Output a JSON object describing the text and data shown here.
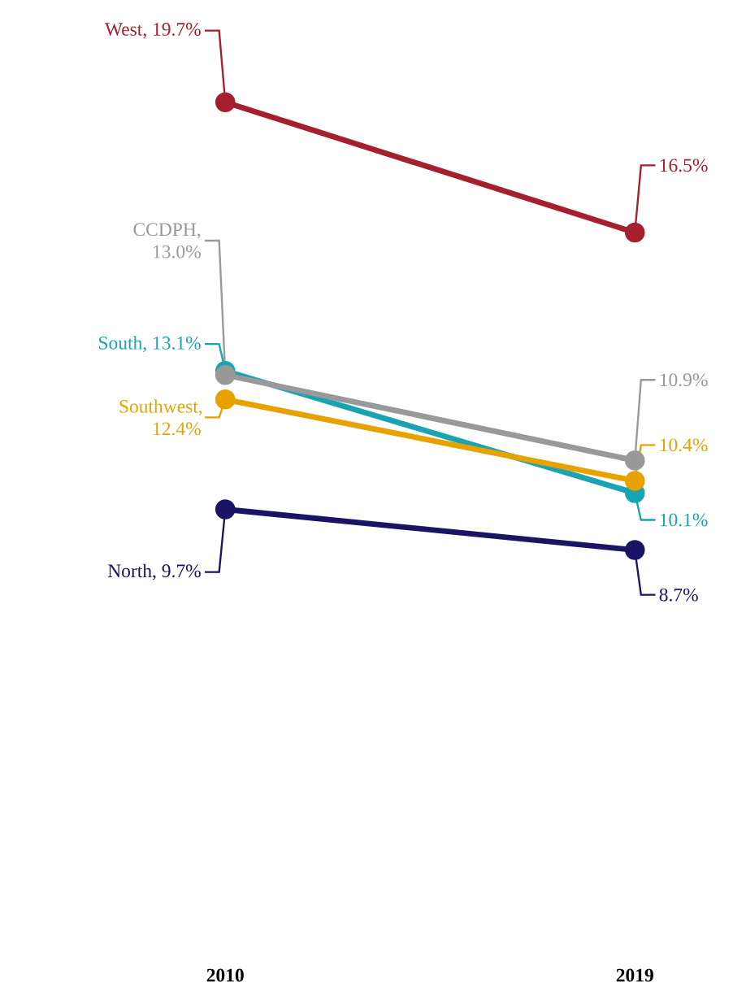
{
  "chart_data": {
    "type": "line",
    "categories": [
      "2010",
      "2019"
    ],
    "marker": "circle",
    "line_style": "solid",
    "series": [
      {
        "color": "#a51f2e",
        "values": [
          19.7,
          16.5
        ],
        "value_labels": [
          "West, 19.7%",
          "16.5%"
        ]
      },
      {
        "color": "#1aa3b0",
        "values": [
          13.1,
          10.1
        ],
        "value_labels": [
          "South, 13.1%",
          "10.1%"
        ]
      },
      {
        "color": "#e8a200",
        "values": [
          12.4,
          10.4
        ],
        "value_labels": [
          "Southwest, 12.4%",
          "10.4%"
        ]
      },
      {
        "color": "#999999",
        "values": [
          13.0,
          10.9
        ],
        "value_labels": [
          "CCDPH, 13.0%",
          "10.9%"
        ]
      },
      {
        "color": "#1b1464",
        "values": [
          9.7,
          8.7
        ],
        "value_labels": [
          "North, 9.7%",
          "8.7%"
        ]
      }
    ]
  }
}
